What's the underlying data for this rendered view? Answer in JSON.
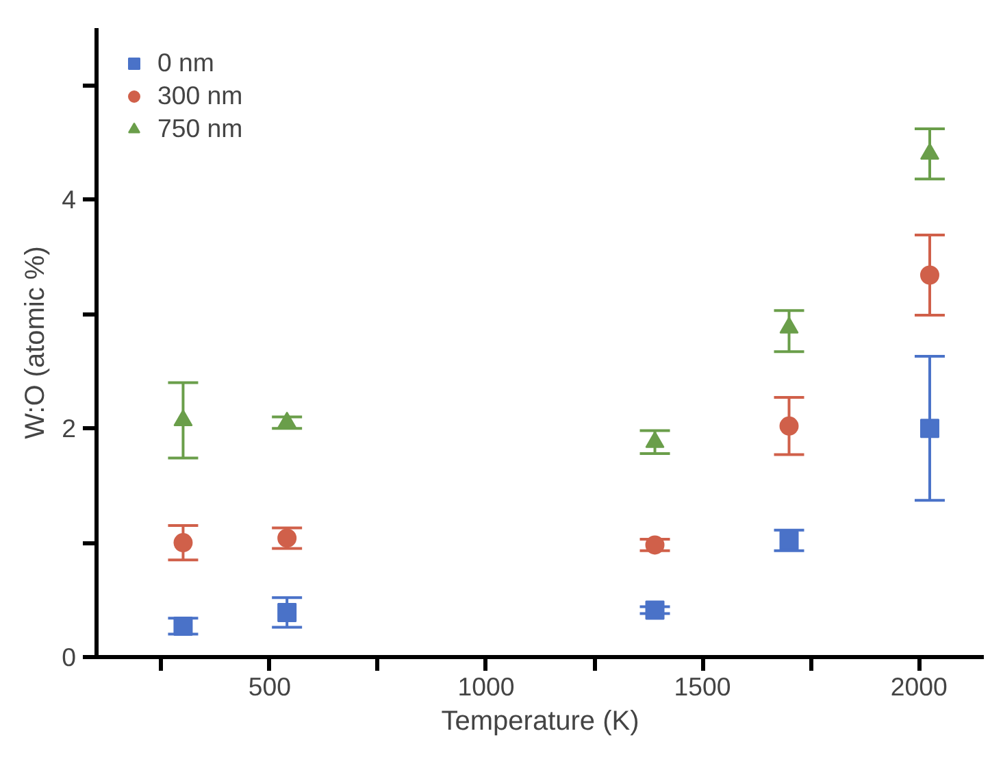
{
  "chart_data": {
    "type": "scatter",
    "xlabel": "Temperature (K)",
    "ylabel": "W:O (atomic %)",
    "x": [
      300,
      540,
      1390,
      1700,
      2025
    ],
    "series": [
      {
        "name": "0 nm",
        "color": "#4a72c8",
        "marker": "square",
        "values": [
          0.27,
          0.39,
          0.41,
          1.02,
          2.0
        ],
        "errors": [
          0.07,
          0.13,
          0.03,
          0.09,
          0.63
        ]
      },
      {
        "name": "300 nm",
        "color": "#d0604a",
        "marker": "circle",
        "values": [
          1.0,
          1.04,
          0.98,
          2.02,
          3.34
        ],
        "errors": [
          0.15,
          0.09,
          0.05,
          0.25,
          0.35
        ]
      },
      {
        "name": "750 nm",
        "color": "#6a9e4a",
        "marker": "triangle",
        "values": [
          2.07,
          2.05,
          1.88,
          2.88,
          4.4
        ],
        "errors": [
          0.33,
          0.05,
          0.1,
          [
            2.67,
            3.03
          ],
          0.22
        ]
      }
    ],
    "xlim": [
      100,
      2150
    ],
    "ylim": [
      0,
      5.5
    ],
    "xticks": [
      {
        "value": 250,
        "label": null
      },
      500,
      {
        "value": 750,
        "label": null
      },
      1000,
      {
        "value": 1250,
        "label": null
      },
      1500,
      {
        "value": 1750,
        "label": null
      },
      2000
    ],
    "yticks": [
      0,
      {
        "value": 1,
        "label": null
      },
      2,
      {
        "value": 3,
        "label": null
      },
      4,
      {
        "value": 5,
        "label": null
      }
    ],
    "grid": false,
    "legend": "top left"
  }
}
